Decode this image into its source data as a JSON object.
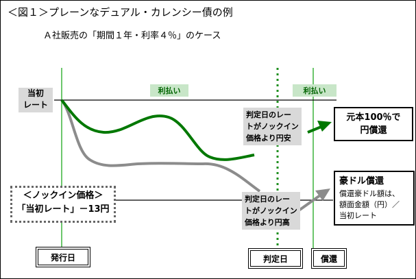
{
  "title": "＜図１＞プレーンなデュアル・カレンシー債の例",
  "subtitle": "Ａ社販売の「期間１年・利率４％」のケース",
  "initial_rate": {
    "line1": "当初",
    "line2": "レート"
  },
  "payout_label_1": "利払い",
  "payout_label_2": "利払い",
  "annotation_yen_weak": {
    "line1": "判定日のレー",
    "line2": "トがノックイン",
    "line3": "価格より円安"
  },
  "annotation_yen_strong": {
    "line1": "判定日のレー",
    "line2": "トがノックイン",
    "line3": "価格より円高"
  },
  "outcome_yen": {
    "line1": "元本100％で",
    "line2": "円償還"
  },
  "outcome_aud": {
    "heading": "豪ドル償還",
    "line1": "償還豪ドル額は、",
    "line2": "額面金額（円）／",
    "line3": "当初レート"
  },
  "knock_in": {
    "line1": "＜ノックイン価格＞",
    "line2": "「当初レート」－13円"
  },
  "dates": {
    "issue": "発行日",
    "judgment": "判定日",
    "redemption": "償還"
  },
  "colors": {
    "green_path": "#007800",
    "gray_path": "#8c8c8c",
    "guide": "#3cb43c"
  }
}
